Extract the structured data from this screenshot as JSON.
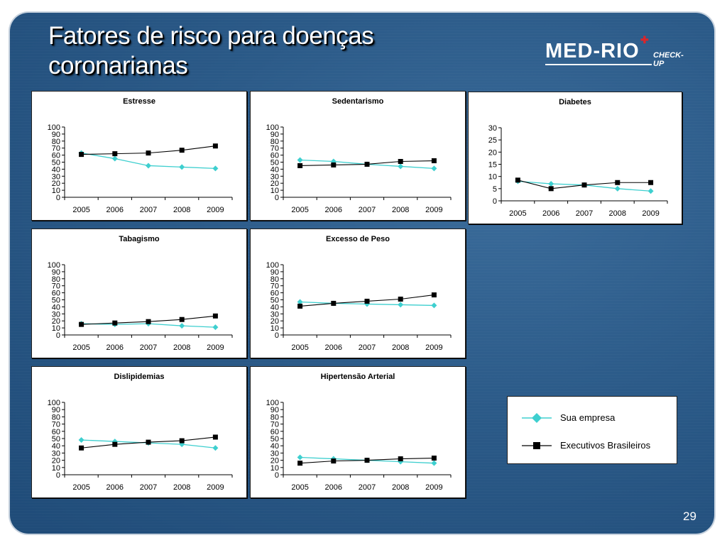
{
  "slide": {
    "title": "Fatores de risco para doenças coronarianas",
    "page_number": "29",
    "background_color": "#2b5a88"
  },
  "logo": {
    "main_text": "MED-RIO",
    "sub_text": "CHECK-UP",
    "accent_color": "#d9262b"
  },
  "legend": {
    "items": [
      {
        "label": "Sua empresa",
        "color": "#3ecfcf",
        "marker": "diamond"
      },
      {
        "label": "Executivos Brasileiros",
        "color": "#000000",
        "marker": "square"
      }
    ]
  },
  "chart_data": [
    {
      "type": "line",
      "title": "Estresse",
      "categories": [
        "2005",
        "2006",
        "2007",
        "2008",
        "2009"
      ],
      "ylim": [
        0,
        100
      ],
      "yticks": [
        0,
        10,
        20,
        30,
        40,
        50,
        60,
        70,
        80,
        90,
        100
      ],
      "series": [
        {
          "name": "Sua empresa",
          "values": [
            63,
            55,
            45,
            43,
            41
          ]
        },
        {
          "name": "Executivos Brasileiros",
          "values": [
            61,
            62,
            63,
            67,
            73
          ]
        }
      ]
    },
    {
      "type": "line",
      "title": "Sedentarismo",
      "categories": [
        "2005",
        "2006",
        "2007",
        "2008",
        "2009"
      ],
      "ylim": [
        0,
        100
      ],
      "yticks": [
        0,
        10,
        20,
        30,
        40,
        50,
        60,
        70,
        80,
        90,
        100
      ],
      "series": [
        {
          "name": "Sua empresa",
          "values": [
            53,
            51,
            47,
            44,
            41
          ]
        },
        {
          "name": "Executivos Brasileiros",
          "values": [
            45,
            46,
            47,
            51,
            52
          ]
        }
      ]
    },
    {
      "type": "line",
      "title": "Diabetes",
      "categories": [
        "2005",
        "2006",
        "2007",
        "2008",
        "2009"
      ],
      "ylim": [
        0,
        30
      ],
      "yticks": [
        0,
        5,
        10,
        15,
        20,
        25,
        30
      ],
      "series": [
        {
          "name": "Sua empresa",
          "values": [
            8,
            7,
            6.5,
            5,
            4
          ]
        },
        {
          "name": "Executivos Brasileiros",
          "values": [
            8.5,
            5,
            6.5,
            7.5,
            7.5
          ]
        }
      ]
    },
    {
      "type": "line",
      "title": "Tabagismo",
      "categories": [
        "2005",
        "2006",
        "2007",
        "2008",
        "2009"
      ],
      "ylim": [
        0,
        100
      ],
      "yticks": [
        0,
        10,
        20,
        30,
        40,
        50,
        60,
        70,
        80,
        90,
        100
      ],
      "series": [
        {
          "name": "Sua empresa",
          "values": [
            16,
            15,
            16,
            13,
            11
          ]
        },
        {
          "name": "Executivos Brasileiros",
          "values": [
            15,
            17,
            19,
            22,
            27
          ]
        }
      ]
    },
    {
      "type": "line",
      "title": "Excesso de Peso",
      "categories": [
        "2005",
        "2006",
        "2007",
        "2008",
        "2009"
      ],
      "ylim": [
        0,
        100
      ],
      "yticks": [
        0,
        10,
        20,
        30,
        40,
        50,
        60,
        70,
        80,
        90,
        100
      ],
      "series": [
        {
          "name": "Sua empresa",
          "values": [
            47,
            45,
            44,
            43,
            42
          ]
        },
        {
          "name": "Executivos Brasileiros",
          "values": [
            41,
            45,
            48,
            51,
            57
          ]
        }
      ]
    },
    {
      "type": "line",
      "title": "Dislipidemias",
      "categories": [
        "2005",
        "2006",
        "2007",
        "2008",
        "2009"
      ],
      "ylim": [
        0,
        100
      ],
      "yticks": [
        0,
        10,
        20,
        30,
        40,
        50,
        60,
        70,
        80,
        90,
        100
      ],
      "series": [
        {
          "name": "Sua empresa",
          "values": [
            48,
            46,
            44,
            42,
            37
          ]
        },
        {
          "name": "Executivos Brasileiros",
          "values": [
            37,
            42,
            45,
            47,
            52
          ]
        }
      ]
    },
    {
      "type": "line",
      "title": "Hipertensão Arterial",
      "categories": [
        "2005",
        "2006",
        "2007",
        "2008",
        "2009"
      ],
      "ylim": [
        0,
        100
      ],
      "yticks": [
        0,
        10,
        20,
        30,
        40,
        50,
        60,
        70,
        80,
        90,
        100
      ],
      "series": [
        {
          "name": "Sua empresa",
          "values": [
            24,
            22,
            20,
            18,
            16
          ]
        },
        {
          "name": "Executivos Brasileiros",
          "values": [
            16,
            19,
            20,
            22,
            23
          ]
        }
      ]
    }
  ]
}
